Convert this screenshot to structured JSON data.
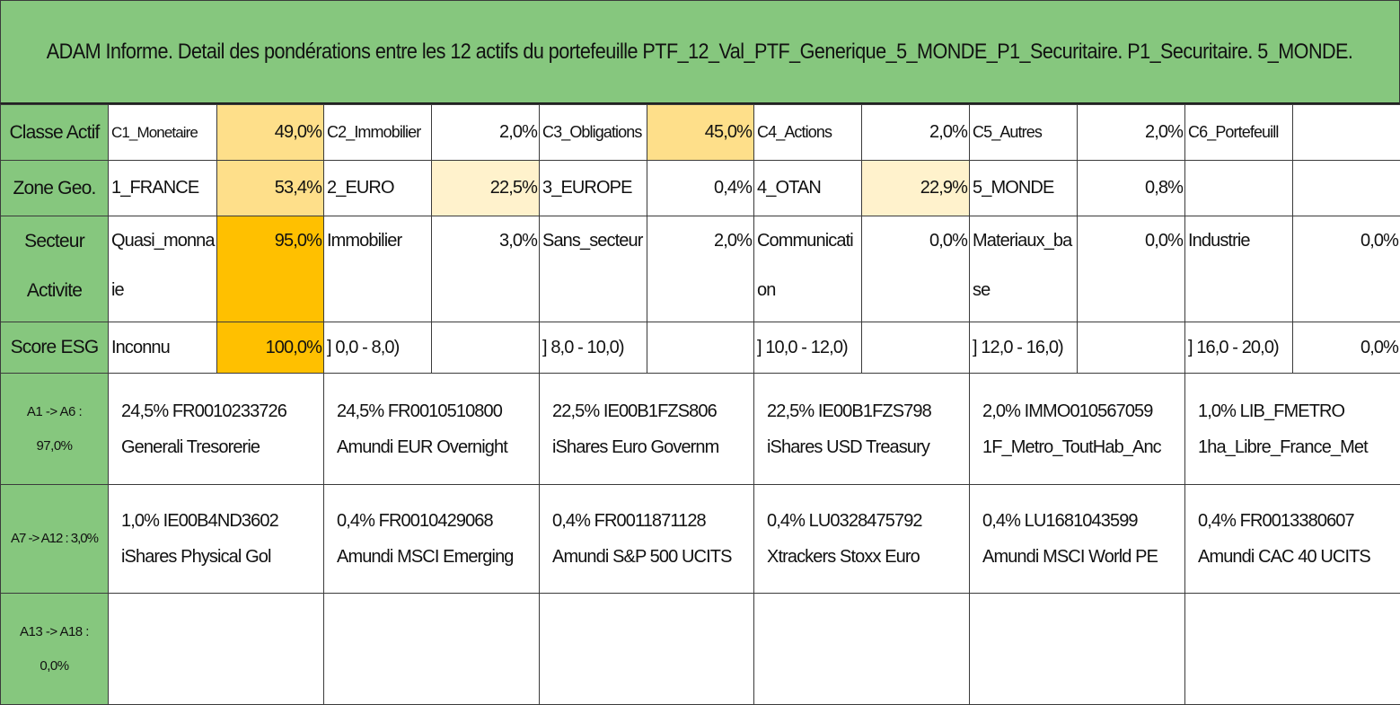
{
  "title": "ADAM Informe. Detail des pondérations entre les 12 actifs du portefeuille PTF_12_Val_PTF_Generique_5_MONDE_P1_Securitaire. P1_Securitaire. 5_MONDE.",
  "rows": {
    "classe": {
      "label": "Classe Actif",
      "cells": [
        {
          "name": "C1_Monetaire",
          "pct": "49,0%"
        },
        {
          "name": "C2_Immobilier",
          "pct": "2,0%"
        },
        {
          "name": "C3_Obligations",
          "pct": "45,0%"
        },
        {
          "name": "C4_Actions",
          "pct": "2,0%"
        },
        {
          "name": "C5_Autres",
          "pct": "2,0%"
        },
        {
          "name": "C6_Portefeuill",
          "pct": ""
        }
      ]
    },
    "zone": {
      "label": "Zone Geo.",
      "cells": [
        {
          "name": "1_FRANCE",
          "pct": "53,4%"
        },
        {
          "name": "2_EURO",
          "pct": "22,5%"
        },
        {
          "name": "3_EUROPE",
          "pct": "0,4%"
        },
        {
          "name": "4_OTAN",
          "pct": "22,9%"
        },
        {
          "name": "5_MONDE",
          "pct": "0,8%"
        },
        {
          "name": "",
          "pct": ""
        }
      ]
    },
    "secteur": {
      "label": "Secteur Activite",
      "cells": [
        {
          "name": "Quasi_monnaie",
          "pct": "95,0%"
        },
        {
          "name": "Immobilier",
          "pct": "3,0%"
        },
        {
          "name": "Sans_secteur",
          "pct": "2,0%"
        },
        {
          "name": "Communication",
          "pct": "0,0%"
        },
        {
          "name": "Materiaux_base",
          "pct": "0,0%"
        },
        {
          "name": "Industrie",
          "pct": "0,0%"
        }
      ]
    },
    "esg": {
      "label": "Score ESG",
      "cells": [
        {
          "name": "Inconnu",
          "pct": "100,0%"
        },
        {
          "name": "] 0,0 - 8,0)",
          "pct": ""
        },
        {
          "name": "] 8,0 - 10,0)",
          "pct": ""
        },
        {
          "name": "] 10,0 - 12,0)",
          "pct": ""
        },
        {
          "name": "] 12,0 - 16,0)",
          "pct": ""
        },
        {
          "name": "] 16,0 - 20,0)",
          "pct": "0,0%"
        }
      ]
    }
  },
  "assets": [
    {
      "label": "A1 -> A6 : 97,0%",
      "items": [
        {
          "line1": "24,5% FR0010233726",
          "line2": "Generali Tresorerie"
        },
        {
          "line1": "24,5% FR0010510800",
          "line2": "Amundi EUR Overnight"
        },
        {
          "line1": "22,5% IE00B1FZS806",
          "line2": "iShares Euro Governm"
        },
        {
          "line1": "22,5% IE00B1FZS798",
          "line2": "iShares USD Treasury"
        },
        {
          "line1": "2,0% IMMO010567059",
          "line2": "1F_Metro_ToutHab_Anc"
        },
        {
          "line1": "1,0% LIB_FMETRO",
          "line2": "1ha_Libre_France_Met"
        }
      ]
    },
    {
      "label": "A7 -> A12 : 3,0%",
      "items": [
        {
          "line1": "1,0% IE00B4ND3602",
          "line2": "iShares Physical Gol"
        },
        {
          "line1": "0,4% FR0010429068",
          "line2": "Amundi MSCI Emerging"
        },
        {
          "line1": "0,4% FR0011871128",
          "line2": "Amundi S&P 500 UCITS"
        },
        {
          "line1": "0,4% LU0328475792",
          "line2": "Xtrackers Stoxx Euro"
        },
        {
          "line1": "0,4% LU1681043599",
          "line2": "Amundi MSCI World PE"
        },
        {
          "line1": "0,4% FR0013380607",
          "line2": "Amundi CAC 40 UCITS"
        }
      ]
    },
    {
      "label": "A13 -> A18 : 0,0%",
      "items": [
        {
          "line1": "",
          "line2": ""
        },
        {
          "line1": "",
          "line2": ""
        },
        {
          "line1": "",
          "line2": ""
        },
        {
          "line1": "",
          "line2": ""
        },
        {
          "line1": "",
          "line2": ""
        },
        {
          "line1": "",
          "line2": ""
        }
      ]
    }
  ]
}
